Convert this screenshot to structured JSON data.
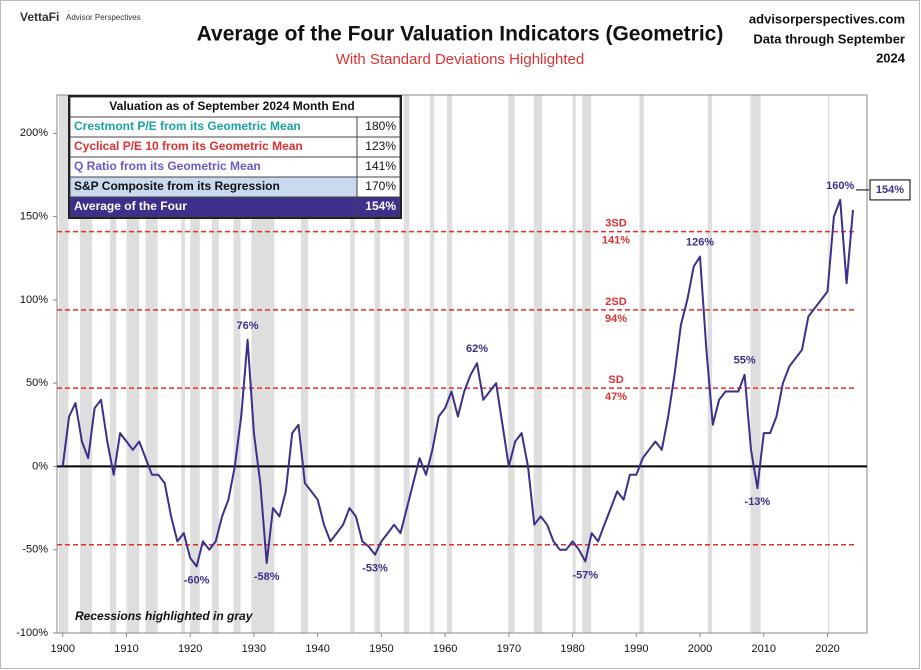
{
  "header": {
    "brand": "VettaFi",
    "brand_sub": "Advisor Perspectives",
    "site": "advisorperspectives.com",
    "through": "Data through September",
    "through_year": "2024"
  },
  "chart_data": {
    "type": "line",
    "title": "Average of the Four Valuation Indicators (Geometric)",
    "subtitle": "With Standard Deviations Highlighted",
    "note": "Recessions highlighted in gray",
    "color": "#3d2f8c",
    "x": [
      1900,
      1901,
      1902,
      1903,
      1904,
      1905,
      1906,
      1907,
      1908,
      1909,
      1910,
      1911,
      1912,
      1913,
      1914,
      1915,
      1916,
      1917,
      1918,
      1919,
      1920,
      1921,
      1922,
      1923,
      1924,
      1925,
      1926,
      1927,
      1928,
      1929,
      1930,
      1931,
      1932,
      1933,
      1934,
      1935,
      1936,
      1937,
      1938,
      1939,
      1940,
      1941,
      1942,
      1943,
      1944,
      1945,
      1946,
      1947,
      1948,
      1949,
      1950,
      1951,
      1952,
      1953,
      1954,
      1955,
      1956,
      1957,
      1958,
      1959,
      1960,
      1961,
      1962,
      1963,
      1964,
      1965,
      1966,
      1967,
      1968,
      1969,
      1970,
      1971,
      1972,
      1973,
      1974,
      1975,
      1976,
      1977,
      1978,
      1979,
      1980,
      1981,
      1982,
      1983,
      1984,
      1985,
      1986,
      1987,
      1988,
      1989,
      1990,
      1991,
      1992,
      1993,
      1994,
      1995,
      1996,
      1997,
      1998,
      1999,
      2000,
      2001,
      2002,
      2003,
      2004,
      2005,
      2006,
      2007,
      2008,
      2009,
      2010,
      2011,
      2012,
      2013,
      2014,
      2015,
      2016,
      2017,
      2018,
      2019,
      2020,
      2021,
      2022,
      2023,
      2024
    ],
    "values": [
      0,
      30,
      38,
      15,
      5,
      35,
      40,
      15,
      -5,
      20,
      15,
      10,
      15,
      5,
      -5,
      -5,
      -10,
      -30,
      -45,
      -40,
      -55,
      -60,
      -45,
      -50,
      -45,
      -30,
      -20,
      0,
      30,
      76,
      20,
      -10,
      -58,
      -25,
      -30,
      -15,
      20,
      25,
      -10,
      -15,
      -20,
      -35,
      -45,
      -40,
      -35,
      -25,
      -30,
      -45,
      -48,
      -53,
      -45,
      -40,
      -35,
      -40,
      -25,
      -10,
      5,
      -5,
      10,
      30,
      35,
      45,
      30,
      45,
      55,
      62,
      40,
      45,
      50,
      25,
      0,
      15,
      20,
      0,
      -35,
      -30,
      -35,
      -45,
      -50,
      -50,
      -45,
      -50,
      -57,
      -40,
      -45,
      -35,
      -25,
      -15,
      -20,
      -5,
      -5,
      5,
      10,
      15,
      10,
      30,
      55,
      85,
      100,
      120,
      126,
      70,
      25,
      40,
      45,
      45,
      45,
      55,
      10,
      -13,
      20,
      20,
      30,
      50,
      60,
      65,
      70,
      90,
      95,
      100,
      105,
      150,
      160,
      110,
      154
    ],
    "xlim": [
      1899.1,
      2026.2
    ],
    "ylim": [
      -100,
      223
    ],
    "xticks": [
      1900,
      1910,
      1920,
      1930,
      1940,
      1950,
      1960,
      1970,
      1980,
      1990,
      2000,
      2010,
      2020
    ],
    "yticks": [
      {
        "value": -100,
        "label": "-100%"
      },
      {
        "value": -50,
        "label": "-50%"
      },
      {
        "value": 0,
        "label": "0%"
      },
      {
        "value": 50,
        "label": "50%"
      },
      {
        "value": 100,
        "label": "100%"
      },
      {
        "value": 150,
        "label": "150%"
      },
      {
        "value": 200,
        "label": "200%"
      }
    ],
    "recessions": [
      [
        1899.4,
        1900.9
      ],
      [
        1902.7,
        1904.6
      ],
      [
        1907.4,
        1908.4
      ],
      [
        1910.0,
        1912.0
      ],
      [
        1913.0,
        1914.9
      ],
      [
        1918.6,
        1919.2
      ],
      [
        1920.0,
        1921.5
      ],
      [
        1923.4,
        1924.5
      ],
      [
        1926.8,
        1927.9
      ],
      [
        1929.6,
        1933.2
      ],
      [
        1937.4,
        1938.5
      ],
      [
        1945.1,
        1945.8
      ],
      [
        1948.9,
        1949.8
      ],
      [
        1953.5,
        1954.4
      ],
      [
        1957.6,
        1958.3
      ],
      [
        1960.3,
        1961.1
      ],
      [
        1969.9,
        1970.9
      ],
      [
        1973.9,
        1975.2
      ],
      [
        1980.0,
        1980.5
      ],
      [
        1981.5,
        1982.9
      ],
      [
        1990.5,
        1991.2
      ],
      [
        2001.2,
        2001.9
      ],
      [
        2007.9,
        2009.5
      ],
      [
        2020.1,
        2020.3
      ]
    ],
    "recession_color": "#dedede",
    "sd_lines": [
      {
        "label": "3SD",
        "value": 141,
        "value_label": "141%"
      },
      {
        "label": "2SD",
        "value": 94,
        "value_label": "94%"
      },
      {
        "label": "SD",
        "value": 47,
        "value_label": "47%"
      },
      {
        "value": -47
      }
    ],
    "sd_color": "#e03030",
    "annotations": [
      {
        "x": 1929,
        "value": 76,
        "label": "76%",
        "position": "above"
      },
      {
        "x": 1921,
        "value": -60,
        "label": "-60%",
        "position": "below"
      },
      {
        "x": 1932,
        "value": -58,
        "label": "-58%",
        "position": "below"
      },
      {
        "x": 1949,
        "value": -53,
        "label": "-53%",
        "position": "below"
      },
      {
        "x": 1965,
        "value": 62,
        "label": "62%",
        "position": "above"
      },
      {
        "x": 1982,
        "value": -57,
        "label": "-57%",
        "position": "below"
      },
      {
        "x": 2000,
        "value": 126,
        "label": "126%",
        "position": "above"
      },
      {
        "x": 2007,
        "value": 55,
        "label": "55%",
        "position": "above"
      },
      {
        "x": 2009,
        "value": -13,
        "label": "-13%",
        "position": "below"
      },
      {
        "x": 2022,
        "value": 160,
        "label": "160%",
        "position": "above"
      }
    ],
    "end_label": "154%"
  },
  "table": {
    "title": "Valuation as of September 2024 Month End",
    "rows": [
      [
        "Crestmont P/E from its Geometric Mean",
        "180%"
      ],
      [
        "Cyclical P/E 10 from its Geometric Mean",
        "123%"
      ],
      [
        "Q Ratio from its Geometric Mean",
        "141%"
      ],
      [
        "S&P Composite from its Regression",
        "170%"
      ],
      [
        "Average of the Four",
        "154%"
      ]
    ]
  }
}
